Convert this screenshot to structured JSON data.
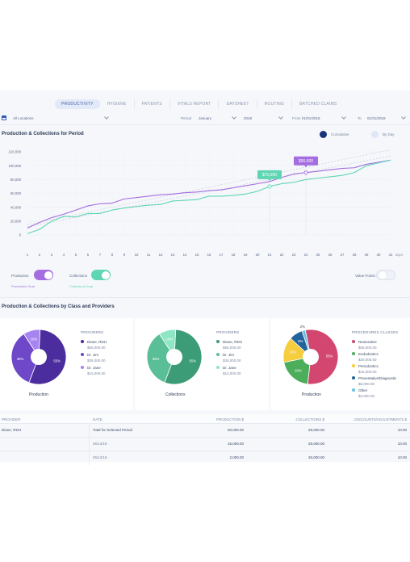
{
  "tabs": [
    "PRODUCTIVITY",
    "HYGIENE",
    "PATIENTS",
    "VITALS REPORT",
    "DAYSHEET",
    "ROUTING",
    "BATCHED CLAIMS"
  ],
  "filters": {
    "location": "All Locations",
    "period_label": "Period",
    "period_month": "January",
    "period_year": "2018",
    "from_label": "From",
    "from_value": "01/01/2018",
    "to_label": "To",
    "to_value": "01/31/2018"
  },
  "line_section": {
    "title": "Production & Collections for Period",
    "cumulative_label": "Cumulative",
    "by_day_label": "By Day",
    "production_switch": "Production",
    "production_goal": "Production Goal",
    "collections_switch": "Collections",
    "collections_goal": "Collections Goal",
    "value_points": "Value Points"
  },
  "colors": {
    "production": "#a46de0",
    "collections": "#5fd6b3",
    "goal": "#c8cfdb",
    "dark_purple": "#4b2d9e",
    "mid_purple": "#6e48c8",
    "light_purple": "#a884f0",
    "dark_green": "#3d9c78",
    "mid_green": "#5abf96",
    "light_green": "#8de6c4",
    "restorative": "#d2466f",
    "endodontics": "#4cae5b",
    "periodontics": "#f5cd3d",
    "preventive": "#23649c",
    "other": "#63c3e8"
  },
  "chart_data": {
    "type": "line",
    "x": [
      1,
      2,
      3,
      4,
      5,
      6,
      7,
      8,
      9,
      10,
      11,
      12,
      13,
      14,
      15,
      16,
      17,
      18,
      19,
      20,
      21,
      22,
      23,
      24,
      25,
      26,
      27,
      28,
      29,
      30,
      31
    ],
    "x_unit": "days",
    "yticks": [
      "0",
      "20,000",
      "40,000",
      "60,000",
      "80,000",
      "100,000",
      "120,000"
    ],
    "ylim": [
      0,
      120000
    ],
    "series": [
      {
        "name": "Production",
        "values": [
          10000,
          18000,
          25000,
          30000,
          36000,
          42000,
          45000,
          46000,
          52000,
          54000,
          56000,
          58000,
          59000,
          61000,
          62000,
          64000,
          65000,
          68000,
          71000,
          74000,
          77000,
          83000,
          88000,
          90000,
          92000,
          94000,
          96000,
          97000,
          102000,
          105000,
          108000
        ]
      },
      {
        "name": "Collections",
        "values": [
          2000,
          8000,
          20000,
          27000,
          26000,
          31000,
          31000,
          36000,
          39000,
          41000,
          43000,
          44000,
          49000,
          50000,
          51000,
          56000,
          56000,
          57000,
          59000,
          63000,
          70000,
          74000,
          76000,
          80000,
          82000,
          84000,
          86000,
          90000,
          100000,
          104000,
          108000
        ]
      },
      {
        "name": "Production Goal",
        "values": [
          15000,
          18600,
          22200,
          25800,
          29400,
          33000,
          36600,
          40200,
          43800,
          47400,
          51000,
          54600,
          58200,
          61800,
          65400,
          69000,
          72600,
          76200,
          79800,
          83400,
          87000,
          90600,
          94200,
          97800,
          101400,
          105000,
          108600,
          112200,
          115800,
          119400,
          123000
        ]
      },
      {
        "name": "Collections Goal",
        "values": [
          12000,
          15400,
          18800,
          22200,
          25600,
          29000,
          32400,
          35800,
          39200,
          42600,
          46000,
          49400,
          52800,
          56200,
          59600,
          63000,
          66400,
          69800,
          73200,
          76600,
          80000,
          83400,
          86800,
          90200,
          93600,
          97000,
          100400,
          103800,
          107200,
          110600,
          114000
        ]
      }
    ],
    "callouts": [
      {
        "label": "$70,000",
        "day": 21,
        "series": "Collections"
      },
      {
        "label": "$90,000",
        "day": 24,
        "series": "Production"
      }
    ]
  },
  "pies_section": {
    "title": "Production & Collections by Class and Providers"
  },
  "pies": [
    {
      "caption": "Production",
      "legend_title": "PROVIDERS",
      "slices": [
        {
          "label": "Diane, RDH",
          "amount": "$55,000.00",
          "pct": 55,
          "pct_label": "55%"
        },
        {
          "label": "Dr. Jim",
          "amount": "$35,000.00",
          "pct": 35,
          "pct_label": "35%"
        },
        {
          "label": "Dr. Jane",
          "amount": "$10,000.00",
          "pct": 10,
          "pct_label": "10%"
        }
      ]
    },
    {
      "caption": "Collections",
      "legend_title": "PROVIDERS",
      "slices": [
        {
          "label": "Diane, RDH",
          "amount": "$55,000.00",
          "pct": 55,
          "pct_label": "55%"
        },
        {
          "label": "Dr. Jim",
          "amount": "$35,000.00",
          "pct": 35,
          "pct_label": "35%"
        },
        {
          "label": "Dr. Jane",
          "amount": "$10,000.00",
          "pct": 10,
          "pct_label": "10%"
        }
      ]
    },
    {
      "caption": "Production",
      "legend_title": "PROCEDURES CLASSES",
      "slices": [
        {
          "label": "Restorative",
          "amount": "$55,000.00",
          "pct": 55,
          "pct_label": "55%"
        },
        {
          "label": "Endodontics",
          "amount": "$20,000.00",
          "pct": 20,
          "pct_label": "20%"
        },
        {
          "label": "Periodontics",
          "amount": "$15,000.00",
          "pct": 15,
          "pct_label": "15%"
        },
        {
          "label": "Preventative/Diagnostic",
          "amount": "$8,000.00",
          "pct": 8,
          "pct_label": "8%"
        },
        {
          "label": "Other",
          "amount": "$2,000.00",
          "pct": 2,
          "pct_label": "2%"
        }
      ]
    }
  ],
  "table": {
    "headers": [
      "PROVIDER",
      "DATE",
      "PRODUCTION $",
      "COLLECTIONS $",
      "DISCOUNTS/ADJUSTMENTS $"
    ],
    "rows": [
      {
        "provider": "Diane, RDH",
        "date": "Total for Selected Period",
        "production": "50,000.00",
        "collections": "25,000.00",
        "discounts": "10.00"
      },
      {
        "provider": "",
        "date": "05/13/18",
        "production": "15,000.00",
        "collections": "25,000.00",
        "discounts": "10.00"
      },
      {
        "provider": "",
        "date": "05/13/18",
        "production": "2,000.00",
        "collections": "25,000.00",
        "discounts": "10.00"
      }
    ]
  }
}
